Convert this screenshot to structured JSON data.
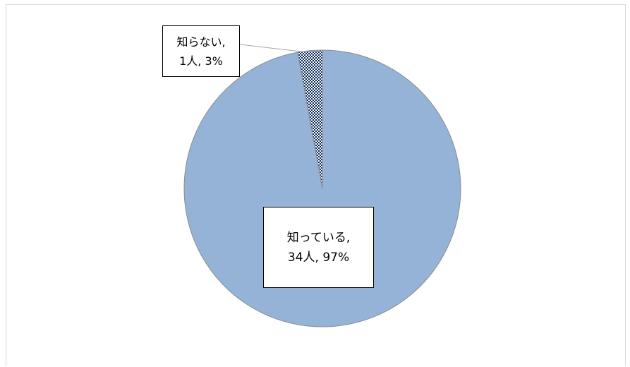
{
  "chart_data": {
    "type": "pie",
    "title": "",
    "slices": [
      {
        "label": "知らない",
        "count": 1,
        "percent": 3,
        "count_text": "1人",
        "percent_text": "3%",
        "line1": "知らない,",
        "line2": "1人, 3%",
        "color": "#0b2a5b",
        "pattern": "checkerboard"
      },
      {
        "label": "知っている",
        "count": 34,
        "percent": 97,
        "count_text": "34人",
        "percent_text": "97%",
        "line1": "知っている,",
        "line2": "34人, 97%",
        "color": "#95b3d7",
        "pattern": "solid"
      }
    ],
    "start_angle_deg": 0,
    "direction": "clockwise",
    "legend": "none"
  },
  "colors": {
    "pie_outline": "#8c8c8c",
    "chart_border": "#d9d9d9",
    "pattern_light": "#ffffff",
    "leader_line": "#a6a6a6"
  }
}
